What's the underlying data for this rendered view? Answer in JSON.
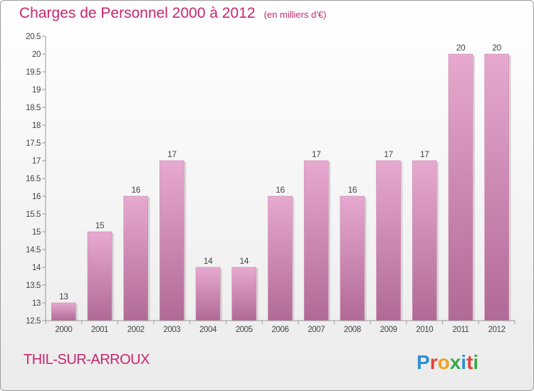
{
  "header": {
    "title": "Charges de Personnel 2000 à 2012",
    "subtitle": "(en milliers d'€)"
  },
  "footer": {
    "commune": "THIL-SUR-ARROUX",
    "logo_text": "Proxiti"
  },
  "colors": {
    "accent": "#c8266e",
    "bar_top": "#e7a9cf",
    "bar_bottom": "#b06a95"
  },
  "chart_data": {
    "type": "bar",
    "title": "Charges de Personnel 2000 à 2012",
    "subtitle": "(en milliers d'€)",
    "categories": [
      "2000",
      "2001",
      "2002",
      "2003",
      "2004",
      "2005",
      "2006",
      "2007",
      "2008",
      "2009",
      "2010",
      "2011",
      "2012"
    ],
    "values": [
      13,
      15,
      16,
      17,
      14,
      14,
      16,
      17,
      16,
      17,
      17,
      20,
      20
    ],
    "data_labels": [
      "13",
      "15",
      "16",
      "17",
      "14",
      "14",
      "16",
      "17",
      "16",
      "17",
      "17",
      "20",
      "20"
    ],
    "ylim": [
      12.5,
      20.5
    ],
    "yticks": [
      12.5,
      13,
      13.5,
      14,
      14.5,
      15,
      15.5,
      16,
      16.5,
      17,
      17.5,
      18,
      18.5,
      19,
      19.5,
      20,
      20.5
    ],
    "ytick_labels": [
      "12.5",
      "13",
      "13.5",
      "14",
      "14.5",
      "15",
      "15.5",
      "16",
      "16.5",
      "17",
      "17.5",
      "18",
      "18.5",
      "19",
      "19.5",
      "20",
      "20.5"
    ],
    "xlabel": "",
    "ylabel": "",
    "grid": false,
    "legend": "none"
  }
}
